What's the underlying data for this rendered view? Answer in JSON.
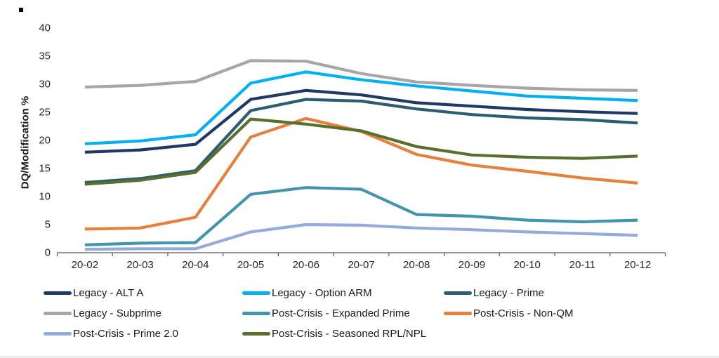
{
  "chart_data": {
    "type": "line",
    "title": "",
    "ylabel": "DQ/Modification %",
    "xlabel": "",
    "ylim": [
      0,
      40
    ],
    "ytick_step": 5,
    "grid": false,
    "legend_position": "bottom",
    "categories": [
      "20-02",
      "20-03",
      "20-04",
      "20-05",
      "20-06",
      "20-07",
      "20-08",
      "20-09",
      "20-10",
      "20-11",
      "20-12"
    ],
    "series": [
      {
        "name": "Legacy - ALT A",
        "color": "#1F3864",
        "values": [
          17.9,
          18.3,
          19.3,
          27.3,
          28.9,
          28.1,
          26.7,
          26.1,
          25.5,
          25.1,
          24.8
        ]
      },
      {
        "name": "Legacy - Option ARM",
        "color": "#00B0F0",
        "values": [
          19.4,
          19.9,
          21.0,
          30.2,
          32.2,
          30.8,
          29.7,
          28.8,
          27.9,
          27.5,
          27.1
        ]
      },
      {
        "name": "Legacy - Prime",
        "color": "#2B5F6F",
        "values": [
          12.5,
          13.2,
          14.6,
          25.3,
          27.3,
          27.0,
          25.6,
          24.6,
          24.0,
          23.7,
          23.1
        ]
      },
      {
        "name": "Legacy - Subprime",
        "color": "#A6A6A6",
        "values": [
          29.5,
          29.8,
          30.5,
          34.2,
          34.1,
          31.9,
          30.4,
          29.8,
          29.3,
          29.0,
          28.9
        ]
      },
      {
        "name": "Post-Crisis - Expanded Prime",
        "color": "#4295AD",
        "values": [
          1.4,
          1.7,
          1.8,
          10.4,
          11.6,
          11.3,
          6.8,
          6.5,
          5.8,
          5.5,
          5.8
        ]
      },
      {
        "name": "Post-Crisis - Non-QM",
        "color": "#E5813C",
        "values": [
          4.2,
          4.4,
          6.3,
          20.6,
          23.9,
          21.6,
          17.5,
          15.6,
          14.5,
          13.3,
          12.4
        ]
      },
      {
        "name": "Post-Crisis - Prime 2.0",
        "color": "#95ABDA",
        "values": [
          0.6,
          0.7,
          0.7,
          3.7,
          5.0,
          4.9,
          4.4,
          4.1,
          3.7,
          3.4,
          3.1
        ]
      },
      {
        "name": "Post-Crisis - Seasoned RPL/NPL",
        "color": "#5A6F2D",
        "values": [
          12.2,
          12.9,
          14.3,
          23.8,
          22.9,
          21.7,
          18.9,
          17.4,
          17.0,
          16.8,
          17.2
        ]
      }
    ],
    "axis_color": "#595959"
  }
}
